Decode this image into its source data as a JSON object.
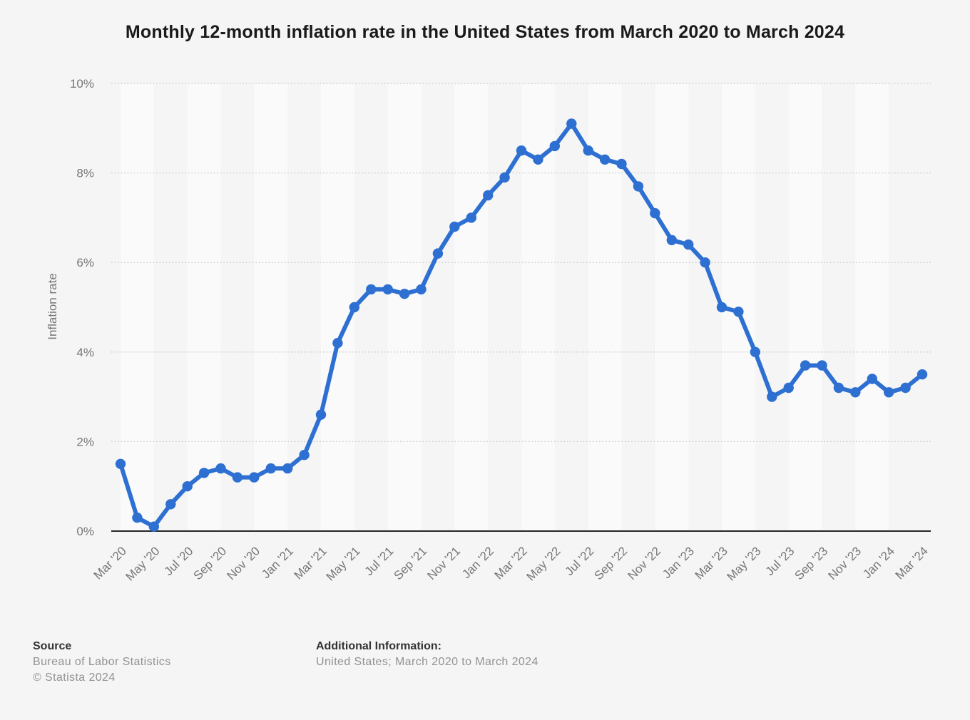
{
  "title": "Monthly 12-month inflation rate in the United States from March 2020 to March 2024",
  "chart_data": {
    "type": "line",
    "title": "Monthly 12-month inflation rate in the United States from March 2020 to March 2024",
    "xlabel": "",
    "ylabel": "Inflation rate",
    "ylim": [
      0,
      10
    ],
    "ytick_step": 2,
    "ytick_labels": [
      "0%",
      "2%",
      "4%",
      "6%",
      "8%",
      "10%"
    ],
    "grid": "horizontal-dotted",
    "legend": "none",
    "x_tick_every": 2,
    "x": [
      "Mar '20",
      "Apr '20",
      "May '20",
      "Jun '20",
      "Jul '20",
      "Aug '20",
      "Sep '20",
      "Oct '20",
      "Nov '20",
      "Dec '20",
      "Jan '21",
      "Feb '21",
      "Mar '21",
      "Apr '21",
      "May '21",
      "Jun '21",
      "Jul '21",
      "Aug '21",
      "Sep '21",
      "Oct '21",
      "Nov '21",
      "Dec '21",
      "Jan '22",
      "Feb '22",
      "Mar '22",
      "Apr '22",
      "May '22",
      "Jun '22",
      "Jul '22",
      "Aug '22",
      "Sep '22",
      "Oct '22",
      "Nov '22",
      "Dec '22",
      "Jan '23",
      "Feb '23",
      "Mar '23",
      "Apr '23",
      "May '23",
      "Jun '23",
      "Jul '23",
      "Aug '23",
      "Sep '23",
      "Oct '23",
      "Nov '23",
      "Dec '23",
      "Jan '24",
      "Feb '24",
      "Mar '24"
    ],
    "values": [
      1.5,
      0.3,
      0.1,
      0.6,
      1.0,
      1.3,
      1.4,
      1.2,
      1.2,
      1.4,
      1.4,
      1.7,
      2.6,
      4.2,
      5.0,
      5.4,
      5.4,
      5.3,
      5.4,
      6.2,
      6.8,
      7.0,
      7.5,
      7.9,
      8.5,
      8.3,
      8.6,
      9.1,
      8.5,
      8.3,
      8.2,
      7.7,
      7.1,
      6.5,
      6.4,
      6.0,
      5.0,
      4.9,
      4.0,
      3.0,
      3.2,
      3.7,
      3.7,
      3.2,
      3.1,
      3.4,
      3.1,
      3.2,
      3.5
    ]
  },
  "footer": {
    "source_heading": "Source",
    "source_lines": [
      "Bureau of Labor Statistics",
      "© Statista 2024"
    ],
    "additional_heading": "Additional Information:",
    "additional_text": "United States; March 2020 to March 2024"
  },
  "colors": {
    "background": "#f5f5f5",
    "band_light": "#fafafa",
    "line": "#2e70d2",
    "grid": "#c9c9c9",
    "axis": "#262626",
    "axis_text": "#767676",
    "title_text": "#1a1a1a"
  }
}
